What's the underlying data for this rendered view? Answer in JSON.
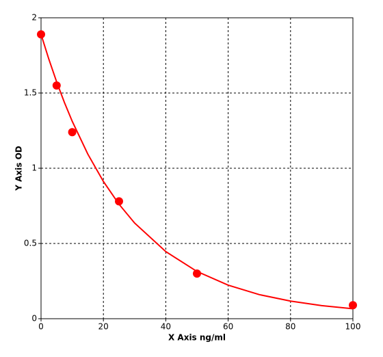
{
  "chart_data": {
    "type": "scatter",
    "x_label": "X Axis ng/ml",
    "y_label": "Y Axis OD",
    "x": [
      0,
      5,
      10,
      25,
      50,
      100
    ],
    "values": [
      1.89,
      1.55,
      1.24,
      0.78,
      0.3,
      0.09
    ],
    "color": "#ff0000",
    "curve": {
      "x": [
        0,
        2.5,
        5,
        7.5,
        10,
        15,
        20,
        25,
        30,
        40,
        50,
        60,
        70,
        80,
        90,
        100
      ],
      "values": [
        1.89,
        1.725,
        1.574,
        1.437,
        1.312,
        1.094,
        0.912,
        0.761,
        0.636,
        0.446,
        0.314,
        0.223,
        0.16,
        0.117,
        0.087,
        0.066
      ]
    },
    "xlim": [
      0,
      100
    ],
    "xticks": [
      0,
      20,
      40,
      60,
      80,
      100
    ],
    "ylim": [
      0,
      2
    ],
    "yticks": [
      0,
      0.5,
      1,
      1.5,
      2
    ],
    "grid": true
  }
}
